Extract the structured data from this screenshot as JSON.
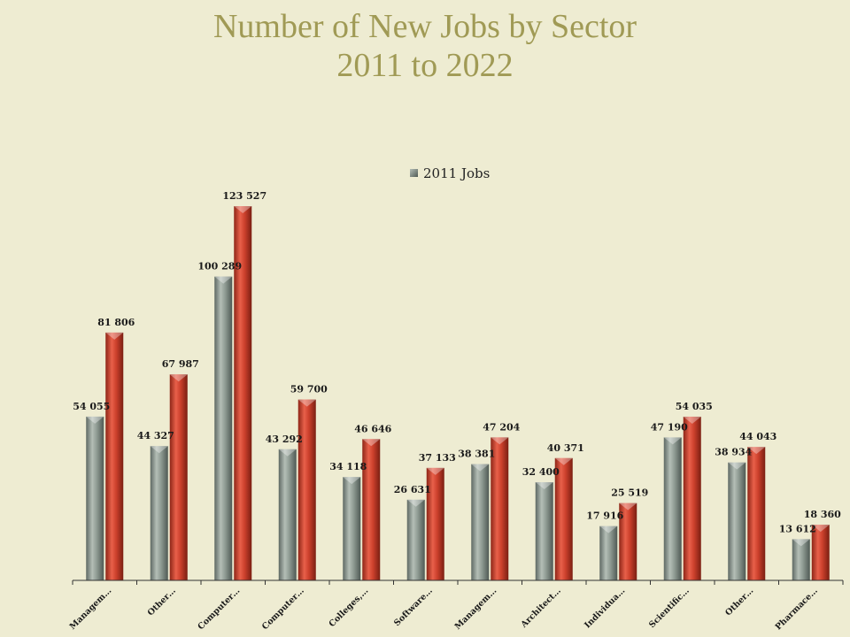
{
  "title_line1": "Number of New Jobs by Sector",
  "title_line2": "2011 to 2022",
  "colors": {
    "background": "#eeecd2",
    "title": "#a09a55",
    "series_2011": "#8c9890",
    "series_2022": "#c8402e"
  },
  "chart_data": {
    "type": "bar",
    "title": "Number of New Jobs by Sector 2011 to 2022",
    "categories": [
      "Managem…",
      "Other…",
      "Computer…",
      "Computer…",
      "Colleges,…",
      "Software…",
      "Managem…",
      "Architect…",
      "Individua…",
      "Scientific…",
      "Other…",
      "Pharmace…"
    ],
    "series": [
      {
        "name": "2011 Jobs",
        "values": [
          54055,
          44327,
          100289,
          43292,
          34118,
          26631,
          38381,
          32400,
          17916,
          47190,
          38934,
          13612
        ]
      },
      {
        "values": [
          81806,
          67987,
          123527,
          59700,
          46646,
          37133,
          47204,
          40371,
          25519,
          54035,
          44043,
          18360
        ]
      }
    ],
    "data_labels_2011": [
      "54 055",
      "44 327",
      "100 289",
      "43 292",
      "34 118",
      "26 631",
      "38 381",
      "32 400",
      "17 916",
      "47 190",
      "38 934",
      "13 612"
    ],
    "data_labels_2022": [
      "81 806",
      "67 987",
      "123 527",
      "59 700",
      "46 646",
      "37 133",
      "47 204",
      "40 371",
      "25 519",
      "54 035",
      "44 043",
      "18 360"
    ],
    "legend": [
      "2011 Jobs"
    ],
    "legend_position": "top",
    "ylim": [
      0,
      123527
    ],
    "grid": false,
    "xlabel": "",
    "ylabel": ""
  }
}
